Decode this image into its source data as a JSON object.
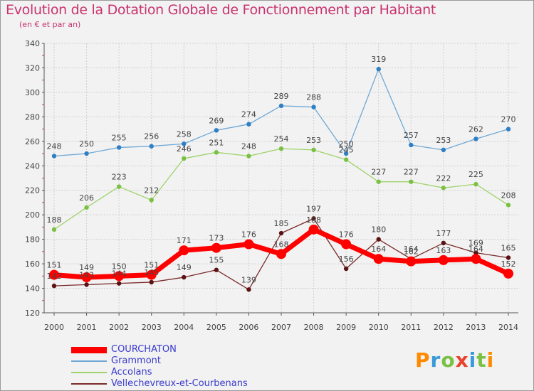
{
  "title": "Evolution de la Dotation Globale de Fonctionnement par Habitant",
  "subtitle": "(en € et par an)",
  "logo": {
    "text": "Proxiti",
    "colors": [
      "#ff8a00",
      "#3a9ad9",
      "#7ac143",
      "#e8432e",
      "#3a9ad9",
      "#7ac143",
      "#ff8a00"
    ]
  },
  "chart_data": {
    "type": "line",
    "title": "Evolution de la Dotation Globale de Fonctionnement par Habitant",
    "subtitle": "(en € et par an)",
    "xlabel": "",
    "ylabel": "",
    "ylim": [
      120,
      340
    ],
    "yticks": [
      120,
      140,
      160,
      180,
      200,
      220,
      240,
      260,
      280,
      300,
      320,
      340
    ],
    "grid": true,
    "legend_position": "bottom-left",
    "x": [
      "2000",
      "2001",
      "2002",
      "2003",
      "2004",
      "2005",
      "2006",
      "2007",
      "2008",
      "2009",
      "2010",
      "2011",
      "2012",
      "2013",
      "2014"
    ],
    "series": [
      {
        "name": "COURCHATON",
        "color": "#ff0000",
        "marker_color": "#ff0000",
        "values": [
          151,
          149,
          150,
          151,
          171,
          173,
          176,
          168,
          188,
          176,
          164,
          162,
          163,
          164,
          152
        ]
      },
      {
        "name": "Grammont",
        "color": "#6fa8d6",
        "marker_color": "#2e7fc4",
        "values": [
          248,
          250,
          255,
          256,
          258,
          269,
          274,
          289,
          288,
          250,
          319,
          257,
          253,
          262,
          270
        ]
      },
      {
        "name": "Accolans",
        "color": "#9ed36a",
        "marker_color": "#7ac143",
        "values": [
          188,
          206,
          223,
          212,
          246,
          251,
          248,
          254,
          253,
          245,
          227,
          227,
          222,
          225,
          208
        ]
      },
      {
        "name": "Vellechevreux-et-Courbenans",
        "color": "#7a2a2a",
        "marker_color": "#5a1212",
        "values": [
          142,
          143,
          144,
          145,
          149,
          155,
          139,
          185,
          197,
          156,
          180,
          164,
          177,
          169,
          165
        ]
      }
    ]
  }
}
